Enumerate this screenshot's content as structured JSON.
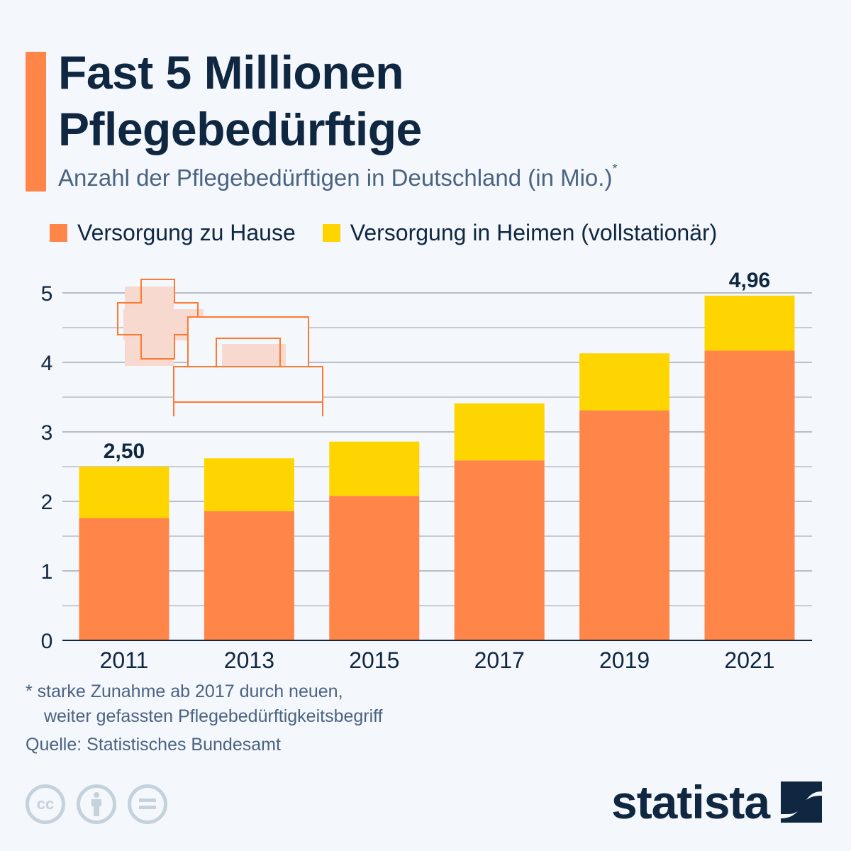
{
  "header": {
    "title_line1": "Fast 5 Millionen",
    "title_line2": "Pflegebedürftige",
    "subtitle": "Anzahl der Pflegebedürftigen in Deutschland (in Mio.)",
    "subtitle_marker": "*"
  },
  "colors": {
    "accent": "#ff8548",
    "home": "#ff8548",
    "nursing_home": "#ffd500",
    "text_dark": "#0f2741",
    "text_muted": "#4a6382",
    "grid": "#b8bec6",
    "background": "#f4f7fb"
  },
  "chart_data": {
    "type": "bar",
    "stacked": true,
    "title": "Fast 5 Millionen Pflegebedürftige",
    "subtitle": "Anzahl der Pflegebedürftigen in Deutschland (in Mio.)*",
    "xlabel": "",
    "ylabel": "",
    "categories": [
      "2011",
      "2013",
      "2015",
      "2017",
      "2019",
      "2021"
    ],
    "series": [
      {
        "name": "Versorgung zu Hause",
        "color": "#ff8548",
        "values": [
          1.76,
          1.86,
          2.08,
          2.59,
          3.31,
          4.17
        ]
      },
      {
        "name": "Versorgung in Heimen (vollstationär)",
        "color": "#ffd500",
        "values": [
          0.74,
          0.76,
          0.78,
          0.82,
          0.82,
          0.79
        ]
      }
    ],
    "totals": [
      2.5,
      2.62,
      2.86,
      3.41,
      4.13,
      4.96
    ],
    "data_labels": [
      {
        "category": "2011",
        "text": "2,50"
      },
      {
        "category": "2021",
        "text": "4,96"
      }
    ],
    "ylim": [
      0,
      5
    ],
    "yticks": [
      0,
      1,
      2,
      3,
      4,
      5
    ],
    "ytick_labels": [
      "0",
      "1",
      "2",
      "3",
      "4",
      "5"
    ],
    "minor_gridlines": [
      0.5,
      1.5,
      2.5,
      3.5,
      4.5
    ],
    "grid": true,
    "legend_position": "top-left"
  },
  "legend": [
    {
      "label": "Versorgung zu Hause",
      "color": "#ff8548"
    },
    {
      "label": "Versorgung in Heimen (vollstationär)",
      "color": "#ffd500"
    }
  ],
  "illustration": {
    "icon": "hospital-bed-with-cross-icon"
  },
  "footer": {
    "footnote_line1": "* starke Zunahme ab 2017 durch neuen,",
    "footnote_line2": "weiter gefassten Pflegebedürftigkeitsbegriff",
    "source": "Quelle: Statistisches Bundesamt",
    "license_icons": [
      {
        "name": "cc-icon",
        "glyph": "cc"
      },
      {
        "name": "attribution-icon",
        "glyph": ""
      },
      {
        "name": "no-derivatives-icon",
        "glyph": ""
      }
    ],
    "brand": "statista"
  }
}
